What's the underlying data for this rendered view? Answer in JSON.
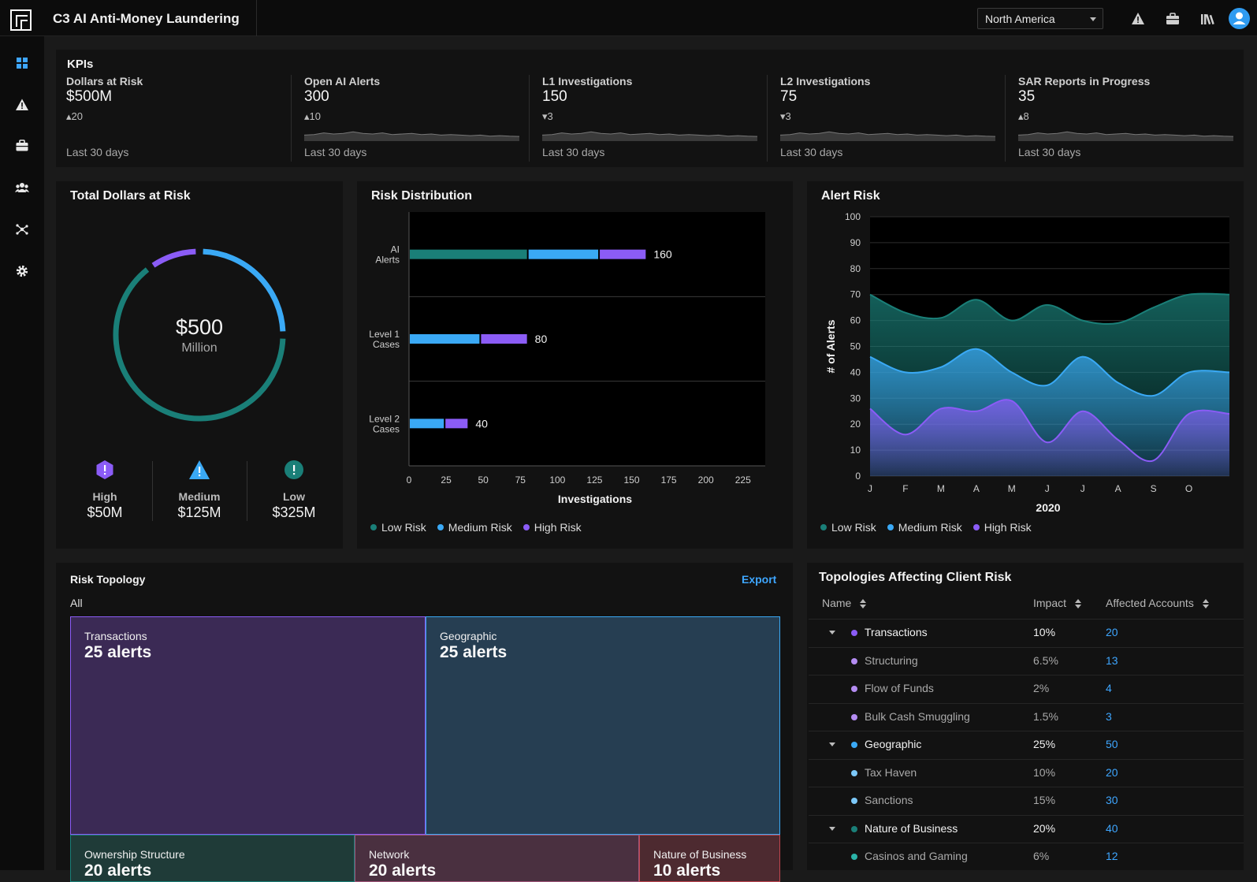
{
  "app": {
    "title": "C3 AI Anti-Money Laundering"
  },
  "header": {
    "region": "North America",
    "icons": [
      "alert-icon",
      "briefcase-icon",
      "library-icon",
      "user-avatar"
    ]
  },
  "sidebar": {
    "items": [
      {
        "icon": "dashboard-icon",
        "active": true
      },
      {
        "icon": "alert-icon"
      },
      {
        "icon": "briefcase-icon"
      },
      {
        "icon": "users-icon"
      },
      {
        "icon": "network-icon"
      },
      {
        "icon": "gear-icon"
      }
    ]
  },
  "kpis": {
    "title": "KPIs",
    "items": [
      {
        "label": "Dollars at Risk",
        "value": "$500M",
        "delta": "20",
        "direction": "up",
        "period": "Last 30 days"
      },
      {
        "label": "Open AI Alerts",
        "value": "300",
        "delta": "10",
        "direction": "up",
        "period": "Last 30 days"
      },
      {
        "label": "L1 Investigations",
        "value": "150",
        "delta": "3",
        "direction": "down",
        "period": "Last 30 days"
      },
      {
        "label": "L2 Investigations",
        "value": "75",
        "delta": "3",
        "direction": "down",
        "period": "Last 30 days"
      },
      {
        "label": "SAR Reports in Progress",
        "value": "35",
        "delta": "8",
        "direction": "up",
        "period": "Last 30 days"
      }
    ]
  },
  "total_risk": {
    "title": "Total Dollars at Risk",
    "center_value": "$500",
    "center_unit": "Million",
    "levels": [
      {
        "label": "High",
        "value": "$50M",
        "color": "#8b5cf6"
      },
      {
        "label": "Medium",
        "value": "$125M",
        "color": "#3aa9f5"
      },
      {
        "label": "Low",
        "value": "$325M",
        "color": "#1a7f78"
      }
    ]
  },
  "chart_data": [
    {
      "type": "donut",
      "title": "Total Dollars at Risk",
      "categories": [
        "High",
        "Medium",
        "Low"
      ],
      "values": [
        50,
        125,
        325
      ],
      "colors": [
        "#8b5cf6",
        "#3aa9f5",
        "#1a7f78"
      ]
    },
    {
      "type": "bar",
      "title": "Risk Distribution",
      "orientation": "horizontal",
      "stacked": true,
      "categories": [
        "AI Alerts",
        "Level 1 Cases",
        "Level 2 Cases"
      ],
      "category_lines": [
        [
          "AI",
          "Alerts"
        ],
        [
          "Level 1",
          "Cases"
        ],
        [
          "Level 2",
          "Cases"
        ]
      ],
      "series": [
        {
          "name": "Low Risk",
          "color": "#1a7f78",
          "values": [
            80,
            0,
            0
          ]
        },
        {
          "name": "Medium Risk",
          "color": "#3aa9f5",
          "values": [
            48,
            48,
            24
          ]
        },
        {
          "name": "High Risk",
          "color": "#8b5cf6",
          "values": [
            32,
            32,
            16
          ]
        }
      ],
      "totals": [
        160,
        80,
        40
      ],
      "xlabel": "Investigations",
      "xlim": [
        0,
        240
      ],
      "xticks": [
        0,
        25,
        50,
        75,
        100,
        125,
        150,
        175,
        200,
        225
      ],
      "legend": "bottom-left"
    },
    {
      "type": "area",
      "title": "Alert Risk",
      "x": [
        "J",
        "F",
        "M",
        "A",
        "M",
        "J",
        "J",
        "A",
        "S",
        "O"
      ],
      "xlabel": "2020",
      "ylabel": "# of Alerts",
      "ylim": [
        0,
        100
      ],
      "yticks": [
        0,
        10,
        20,
        30,
        40,
        50,
        60,
        70,
        80,
        90,
        100
      ],
      "series": [
        {
          "name": "Low Risk",
          "color": "#1a7f78",
          "values": [
            70,
            63,
            61,
            68,
            60,
            66,
            60,
            59,
            65,
            70
          ]
        },
        {
          "name": "Medium Risk",
          "color": "#3aa9f5",
          "values": [
            46,
            40,
            42,
            49,
            40,
            35,
            46,
            36,
            31,
            40
          ]
        },
        {
          "name": "High Risk",
          "color": "#8b5cf6",
          "values": [
            26,
            16,
            26,
            25,
            29,
            13,
            25,
            14,
            6,
            24
          ]
        }
      ],
      "legend": "bottom-left"
    },
    {
      "type": "treemap",
      "title": "Risk Topology",
      "filter": "All",
      "cells": [
        {
          "name": "Transactions",
          "count": "25 alerts",
          "value": 25,
          "fill": "#3b2a55",
          "border": "#8b5cf6"
        },
        {
          "name": "Geographic",
          "count": "25 alerts",
          "value": 25,
          "fill": "#263e52",
          "border": "#3aa9f5"
        },
        {
          "name": "Ownership Structure",
          "count": "20 alerts",
          "value": 20,
          "fill": "#1f3b38",
          "border": "#1a7f78"
        },
        {
          "name": "Network",
          "count": "20 alerts",
          "value": 20,
          "fill": "#4a3040",
          "border": "#a0567a"
        },
        {
          "name": "Nature of Business",
          "count": "10 alerts",
          "value": 10,
          "fill": "#4d2a30",
          "border": "#c0464f"
        }
      ]
    }
  ],
  "risk_distribution": {
    "title": "Risk Distribution",
    "legend": [
      "Low Risk",
      "Medium Risk",
      "High Risk"
    ]
  },
  "alert_risk": {
    "title": "Alert Risk",
    "legend": [
      "Low Risk",
      "Medium Risk",
      "High Risk"
    ]
  },
  "risk_topology": {
    "title": "Risk Topology",
    "export_label": "Export",
    "filter": "All"
  },
  "topologies": {
    "title": "Topologies Affecting Client Risk",
    "columns": [
      "Name",
      "Impact",
      "Affected Accounts"
    ],
    "rows": [
      {
        "name": "Transactions",
        "impact": "10%",
        "accounts": "20",
        "level": 0,
        "color": "#8b5cf6"
      },
      {
        "name": "Structuring",
        "impact": "6.5%",
        "accounts": "13",
        "level": 1,
        "color": "#b48cf2"
      },
      {
        "name": "Flow of Funds",
        "impact": "2%",
        "accounts": "4",
        "level": 1,
        "color": "#b48cf2"
      },
      {
        "name": "Bulk Cash Smuggling",
        "impact": "1.5%",
        "accounts": "3",
        "level": 1,
        "color": "#b48cf2"
      },
      {
        "name": "Geographic",
        "impact": "25%",
        "accounts": "50",
        "level": 0,
        "color": "#3aa9f5"
      },
      {
        "name": "Tax Haven",
        "impact": "10%",
        "accounts": "20",
        "level": 1,
        "color": "#7cc8f8"
      },
      {
        "name": "Sanctions",
        "impact": "15%",
        "accounts": "30",
        "level": 1,
        "color": "#7cc8f8"
      },
      {
        "name": "Nature of Business",
        "impact": "20%",
        "accounts": "40",
        "level": 0,
        "color": "#1a7f78"
      },
      {
        "name": "Casinos and Gaming",
        "impact": "6%",
        "accounts": "12",
        "level": 1,
        "color": "#2bb3a8"
      }
    ]
  }
}
